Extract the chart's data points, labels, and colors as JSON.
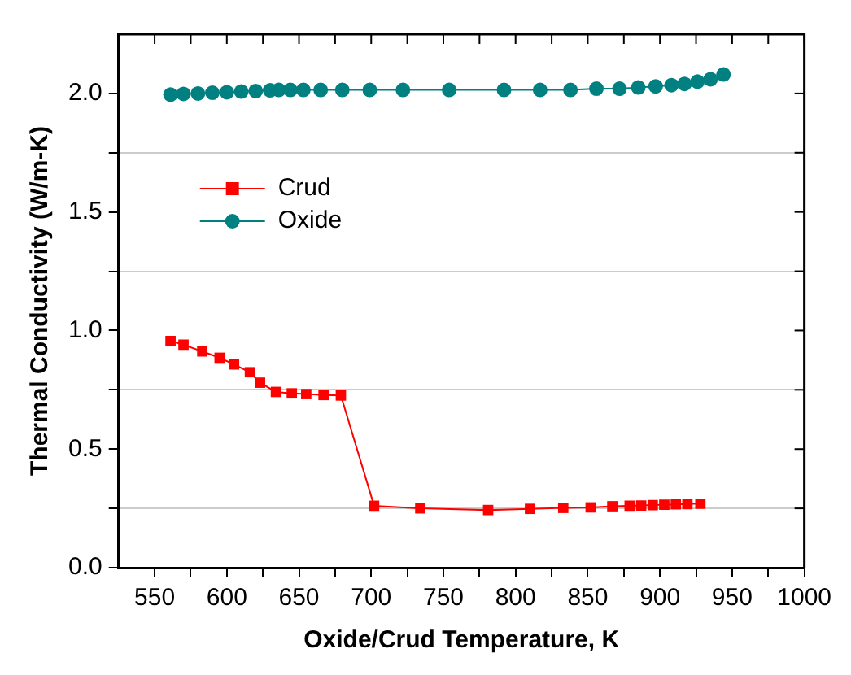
{
  "chart_data": {
    "type": "line",
    "xlabel": "Oxide/Crud Temperature, K",
    "ylabel": "Thermal Conductivity (W/m-K)",
    "xlim": [
      525,
      1000
    ],
    "ylim": [
      0,
      2.25
    ],
    "xticks": [
      550,
      {
        "value": 575,
        "label": null
      },
      600,
      {
        "value": 625,
        "label": null
      },
      650,
      {
        "value": 675,
        "label": null
      },
      700,
      {
        "value": 725,
        "label": null
      },
      750,
      {
        "value": 775,
        "label": null
      },
      800,
      {
        "value": 825,
        "label": null
      },
      850,
      {
        "value": 875,
        "label": null
      },
      900,
      {
        "value": 925,
        "label": null
      },
      950,
      {
        "value": 975,
        "label": null
      },
      1000
    ],
    "yticks": [
      {
        "value": 0,
        "label": "0.0"
      },
      {
        "value": 0.25,
        "label": null
      },
      0.5,
      {
        "value": 0.75,
        "label": null
      },
      {
        "value": 1,
        "label": "1.0"
      },
      {
        "value": 1.25,
        "label": null
      },
      1.5,
      {
        "value": 1.75,
        "label": null
      },
      {
        "value": 2,
        "label": "2.0"
      }
    ],
    "grid": "y",
    "legend": "top left",
    "line_style": "solid",
    "series": [
      {
        "name": "Crud",
        "color": "#ff0000",
        "marker": "square",
        "x": [
          561,
          570,
          583,
          595,
          605,
          616,
          623,
          634,
          645,
          655,
          667,
          679,
          702,
          734,
          781,
          810,
          833,
          852,
          867,
          879,
          887,
          895,
          903,
          911,
          919,
          928
        ],
        "values": [
          0.956,
          0.94,
          0.912,
          0.885,
          0.857,
          0.824,
          0.78,
          0.741,
          0.735,
          0.732,
          0.728,
          0.726,
          0.261,
          0.25,
          0.243,
          0.248,
          0.252,
          0.254,
          0.259,
          0.261,
          0.262,
          0.264,
          0.265,
          0.267,
          0.268,
          0.27
        ]
      },
      {
        "name": "Oxide",
        "color": "#008080",
        "marker": "circle",
        "x": [
          561,
          570,
          580,
          590,
          600,
          610,
          620,
          630,
          636,
          644,
          653,
          665,
          680,
          699,
          722,
          754,
          792,
          817,
          838,
          856,
          872,
          885,
          897,
          908,
          917,
          926,
          935,
          944
        ],
        "values": [
          1.995,
          1.998,
          2.0,
          2.003,
          2.005,
          2.008,
          2.01,
          2.013,
          2.015,
          2.015,
          2.015,
          2.015,
          2.015,
          2.015,
          2.015,
          2.015,
          2.015,
          2.015,
          2.015,
          2.02,
          2.02,
          2.025,
          2.03,
          2.035,
          2.04,
          2.05,
          2.06,
          2.08
        ]
      }
    ]
  }
}
